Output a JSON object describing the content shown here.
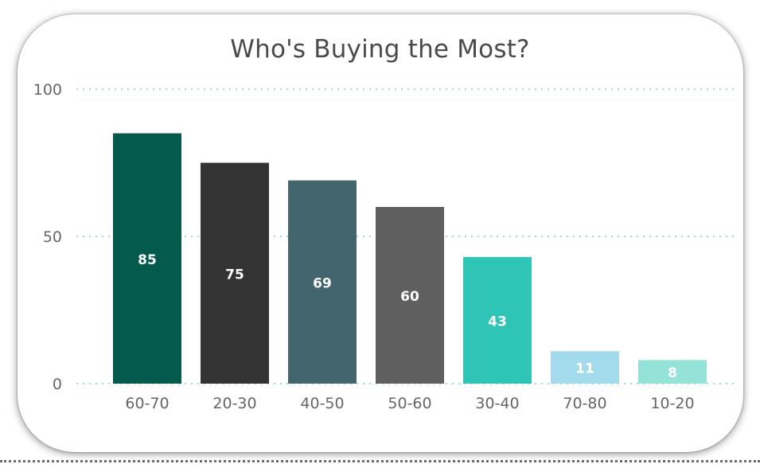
{
  "chart_data": {
    "type": "bar",
    "title": "Who's Buying the Most?",
    "categories": [
      "60-70",
      "20-30",
      "40-50",
      "50-60",
      "30-40",
      "70-80",
      "10-20"
    ],
    "values": [
      85,
      75,
      69,
      60,
      43,
      11,
      8
    ],
    "data_labels": [
      "85",
      "75",
      "69",
      "60",
      "43",
      "11",
      "8"
    ],
    "colors": [
      "#035a4d",
      "#333333",
      "#42656e",
      "#5f5f5f",
      "#2ec5b6",
      "#a3daec",
      "#95e2d8"
    ],
    "yticks": [
      "0",
      "50",
      "100"
    ],
    "ylim": [
      0,
      100
    ],
    "grid": true,
    "grid_color": "#9fd6e2",
    "legend": "none"
  }
}
